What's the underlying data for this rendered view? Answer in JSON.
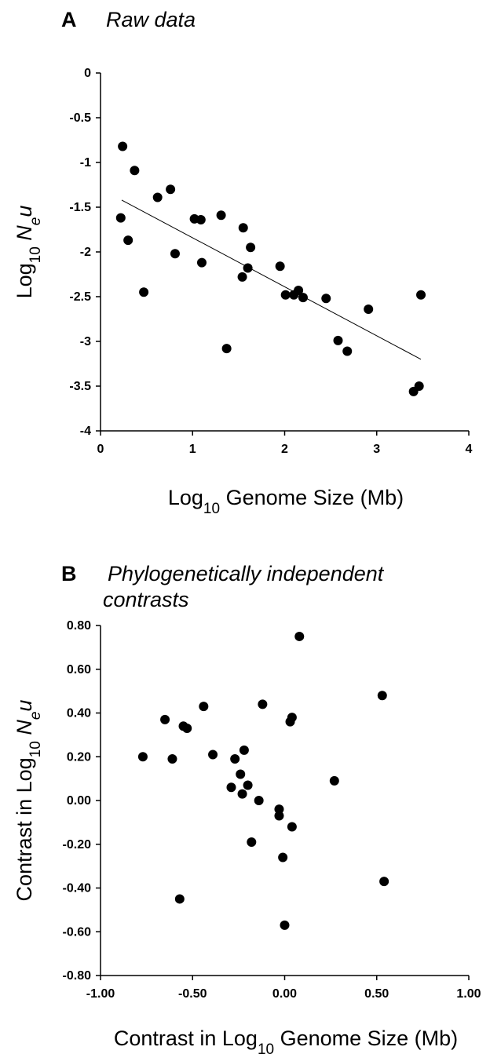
{
  "chart_data": [
    {
      "type": "scatter",
      "panel_letter": "A",
      "title": "Raw data",
      "title_line2": "",
      "xlabel": {
        "pre": "Log",
        "sub": "10",
        "post": " Genome Size (Mb)"
      },
      "ylabel": {
        "pre": "Log",
        "sub": "10",
        "mid": " ",
        "italic": "N",
        "italic_sub": "e",
        "italic_post": "u"
      },
      "xlim": [
        0,
        4
      ],
      "ylim": [
        -4,
        0
      ],
      "xticks": [
        0,
        1,
        2,
        3,
        4
      ],
      "yticks": [
        0,
        -0.5,
        -1,
        -1.5,
        -2,
        -2.5,
        -3,
        -3.5,
        -4
      ],
      "xtick_labels": [
        "0",
        "1",
        "2",
        "3",
        "4"
      ],
      "ytick_labels": [
        "0",
        "-0.5",
        "-1",
        "-1.5",
        "-2",
        "-2.5",
        "-3",
        "-3.5",
        "-4"
      ],
      "grid": false,
      "trendline": {
        "x": [
          0.23,
          3.48
        ],
        "y": [
          -1.42,
          -3.2
        ]
      },
      "points": [
        [
          0.24,
          -0.82
        ],
        [
          0.22,
          -1.62
        ],
        [
          0.3,
          -1.87
        ],
        [
          0.37,
          -1.09
        ],
        [
          0.47,
          -2.45
        ],
        [
          0.62,
          -1.39
        ],
        [
          0.76,
          -1.3
        ],
        [
          0.81,
          -2.02
        ],
        [
          1.02,
          -1.63
        ],
        [
          1.09,
          -1.64
        ],
        [
          1.1,
          -2.12
        ],
        [
          1.31,
          -1.59
        ],
        [
          1.37,
          -3.08
        ],
        [
          1.54,
          -2.28
        ],
        [
          1.55,
          -1.73
        ],
        [
          1.6,
          -2.18
        ],
        [
          1.63,
          -1.95
        ],
        [
          1.95,
          -2.16
        ],
        [
          2.01,
          -2.48
        ],
        [
          2.1,
          -2.48
        ],
        [
          2.15,
          -2.43
        ],
        [
          2.2,
          -2.51
        ],
        [
          2.45,
          -2.52
        ],
        [
          2.58,
          -2.99
        ],
        [
          2.68,
          -3.11
        ],
        [
          2.91,
          -2.64
        ],
        [
          3.4,
          -3.56
        ],
        [
          3.46,
          -3.5
        ],
        [
          3.48,
          -2.48
        ]
      ]
    },
    {
      "type": "scatter",
      "panel_letter": "B",
      "title": "Phylogenetically independent",
      "title_line2": "contrasts",
      "xlabel": {
        "pre": "Contrast in Log",
        "sub": "10",
        "post": " Genome Size (Mb)"
      },
      "ylabel": {
        "pre": "Contrast in Log",
        "sub": "10",
        "mid": " ",
        "italic": "N",
        "italic_sub": "e",
        "italic_post": "u"
      },
      "xlim": [
        -1.0,
        1.0
      ],
      "ylim": [
        -0.8,
        0.8
      ],
      "xticks": [
        -1.0,
        -0.5,
        0.0,
        0.5,
        1.0
      ],
      "yticks": [
        0.8,
        0.6,
        0.4,
        0.2,
        0.0,
        -0.2,
        -0.4,
        -0.6,
        -0.8
      ],
      "xtick_labels": [
        "-1.00",
        "-0.50",
        "0.00",
        "0.50",
        "1.00"
      ],
      "ytick_labels": [
        "0.80",
        "0.60",
        "0.40",
        "0.20",
        "0.00",
        "-0.20",
        "-0.40",
        "-0.60",
        "-0.80"
      ],
      "grid": false,
      "points": [
        [
          -0.77,
          0.2
        ],
        [
          -0.65,
          0.37
        ],
        [
          -0.61,
          0.19
        ],
        [
          -0.57,
          -0.45
        ],
        [
          -0.55,
          0.34
        ],
        [
          -0.53,
          0.33
        ],
        [
          -0.44,
          0.43
        ],
        [
          -0.39,
          0.21
        ],
        [
          -0.29,
          0.06
        ],
        [
          -0.27,
          0.19
        ],
        [
          -0.24,
          0.12
        ],
        [
          -0.23,
          0.03
        ],
        [
          -0.22,
          0.23
        ],
        [
          -0.2,
          0.07
        ],
        [
          -0.18,
          -0.19
        ],
        [
          -0.14,
          0.0
        ],
        [
          -0.12,
          0.44
        ],
        [
          -0.03,
          -0.04
        ],
        [
          -0.03,
          -0.07
        ],
        [
          -0.01,
          -0.26
        ],
        [
          0.0,
          -0.57
        ],
        [
          0.03,
          0.36
        ],
        [
          0.04,
          0.38
        ],
        [
          0.04,
          -0.12
        ],
        [
          0.08,
          0.75
        ],
        [
          0.27,
          0.09
        ],
        [
          0.53,
          0.48
        ],
        [
          0.54,
          -0.37
        ]
      ]
    }
  ]
}
